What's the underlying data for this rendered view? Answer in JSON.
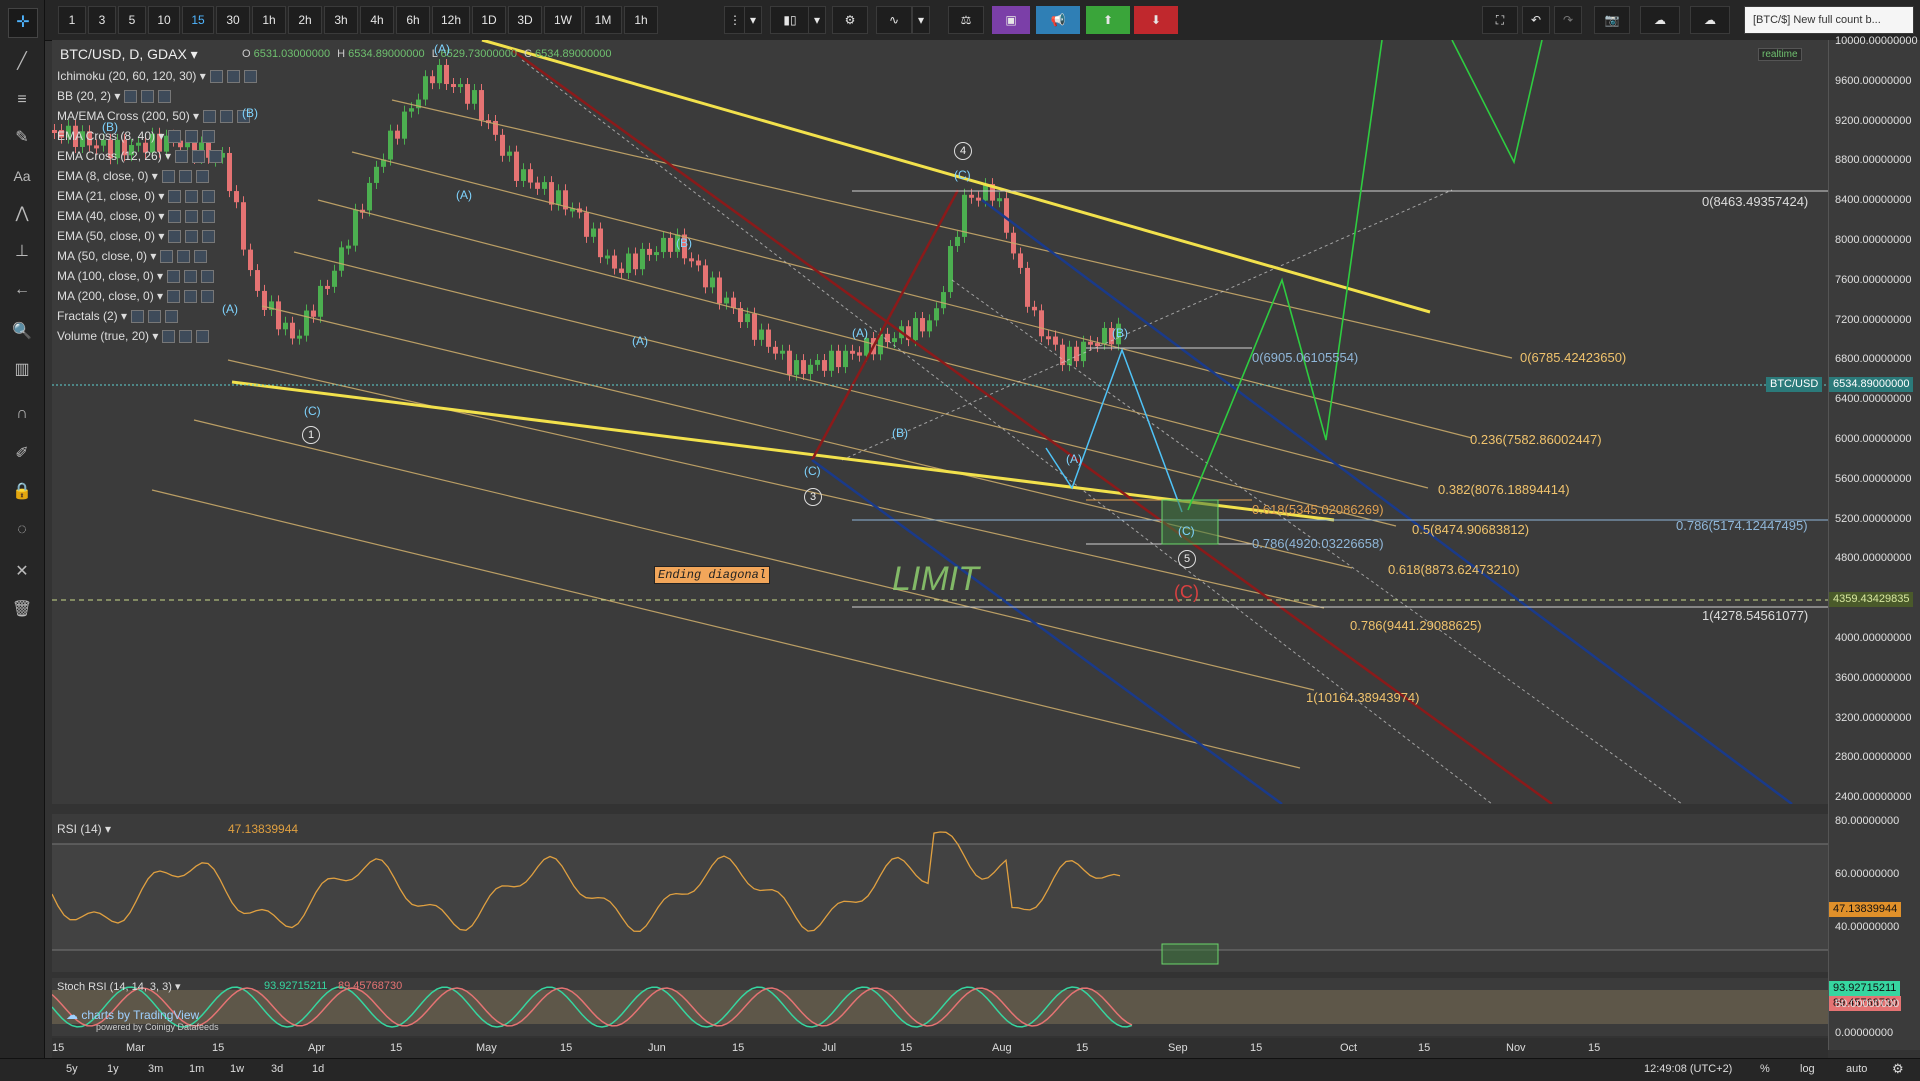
{
  "toolbar": {
    "intervals": [
      "1",
      "3",
      "5",
      "10",
      "15",
      "30",
      "1h",
      "2h",
      "3h",
      "4h",
      "6h",
      "12h",
      "1D",
      "3D",
      "1W",
      "1M",
      "1h"
    ],
    "active_interval_index": 4,
    "headline": "[BTC/$] New full count b..."
  },
  "legend": {
    "symbol": "BTC/USD, D, GDAX",
    "ohlc": {
      "o_label": "O",
      "o": "6531.03000000",
      "h_label": "H",
      "h": "6534.89000000",
      "l_label": "L",
      "l": "6529.73000000",
      "c_label": "C",
      "c": "6534.89000000"
    },
    "realtime": "realtime",
    "indicators": [
      "Ichimoku (20, 60, 120, 30)",
      "BB (20, 2)",
      "MA/EMA Cross (200, 50)",
      "EMA Cross (8, 40)",
      "EMA Cross (12, 26)",
      "EMA (8, close, 0)",
      "EMA (21, close, 0)",
      "EMA (40, close, 0)",
      "EMA (50, close, 0)",
      "MA (50, close, 0)",
      "MA (100, close, 0)",
      "MA (200, close, 0)",
      "Fractals (2)",
      "Volume (true, 20)"
    ]
  },
  "price_axis": [
    "10000.00000000",
    "9600.00000000",
    "9200.00000000",
    "8800.00000000",
    "8400.00000000",
    "8000.00000000",
    "7600.00000000",
    "7200.00000000",
    "6800.00000000",
    "6400.00000000",
    "6000.00000000",
    "5600.00000000",
    "5200.00000000",
    "4800.00000000",
    "4400.00000000",
    "4000.00000000",
    "3600.00000000",
    "3200.00000000",
    "2800.00000000",
    "2400.00000000"
  ],
  "price_tags": {
    "btc_label": "BTC/USD",
    "btc_value": "6534.89000000",
    "line_value": "4359.43429835"
  },
  "fib_labels": [
    "0(8463.49357424)",
    "0(6785.42423650)",
    "0(6905.06105554)",
    "0.236(7582.86002447)",
    "0.382(8076.18894414)",
    "0.618(5345.02086269)",
    "0.5(8474.90683812)",
    "0.786(5174.12447495)",
    "0.786(4920.03226658)",
    "0.618(8873.62473210)",
    "1(4278.54561077)",
    "0.786(9441.29088625)",
    "1(10164.38943974)"
  ],
  "wave_labels": [
    "(A)",
    "(B)",
    "(B)",
    "(A)",
    "(C)",
    "(A)",
    "(B)",
    "(A)",
    "(C)",
    "(A)",
    "(B)",
    "(C)",
    "(B)",
    "(A)",
    "(C)",
    "(C)"
  ],
  "circle_labels": [
    "1",
    "3",
    "4",
    "5"
  ],
  "annotations": {
    "ending_diagonal": "Ending diagonal",
    "limit": "LIMIT",
    "c_red": "(C)"
  },
  "rsi": {
    "title": "RSI (14)",
    "value": "47.13839944",
    "axis": [
      "80.00000000",
      "60.00000000",
      "40.00000000"
    ],
    "tag": "47.13839944"
  },
  "stoch": {
    "title": "Stoch RSI (14, 14, 3, 3)",
    "k": "93.92715211",
    "d": "89.45768730",
    "axis": [
      "50.00000000",
      "0.00000000"
    ],
    "tag_k": "93.92715211",
    "tag_d": "89.45768730",
    "watermark": "charts by TradingView",
    "powered": "powered by Coinigy Datafeeds"
  },
  "time_axis": [
    "15",
    "Mar",
    "15",
    "Apr",
    "15",
    "May",
    "15",
    "Jun",
    "15",
    "Jul",
    "15",
    "Aug",
    "15",
    "Sep",
    "15",
    "Oct",
    "15",
    "Nov",
    "15"
  ],
  "bottom": {
    "ranges": [
      "5y",
      "1y",
      "3m",
      "1m",
      "1w",
      "3d",
      "1d"
    ],
    "clock": "12:49:08 (UTC+2)",
    "pct": "%",
    "log": "log",
    "auto": "auto"
  },
  "colors": {
    "bg": "#3b3b3b",
    "up": "#4caf50",
    "down": "#e57373",
    "yellow": "#f2e14c",
    "blue": "#1a3a8a",
    "red": "#8b1a1a",
    "fib": "#f0c36d",
    "cyan": "#4fc3f7",
    "green": "#2ecc40"
  }
}
